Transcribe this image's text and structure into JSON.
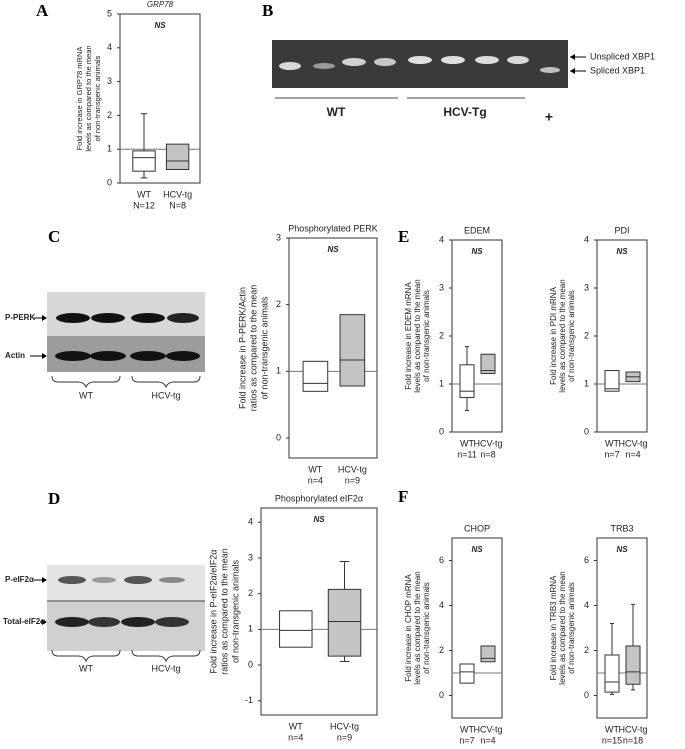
{
  "panel_labels": [
    "A",
    "B",
    "C",
    "D",
    "E",
    "F"
  ],
  "blots": {
    "xbp1": {
      "bands": [
        "Unspliced XBP1",
        "Spliced XBP1"
      ],
      "groups": [
        "WT",
        "HCV-Tg",
        "+"
      ]
    },
    "perk": {
      "rows": [
        "P-PERK",
        "Actin"
      ],
      "groups": [
        "WT",
        "HCV-tg"
      ]
    },
    "eif2a": {
      "rows": [
        "P-eIF2α",
        "Total-eIF2α"
      ],
      "groups": [
        "WT",
        "HCV-tg"
      ]
    }
  },
  "chart_data": [
    {
      "type": "box",
      "title": "GRP78",
      "annotation": "NS",
      "ylabel": [
        "Fold increase in GRP78 mRNA",
        "levels as compared to the mean",
        "of non-transgenic animals"
      ],
      "categories": [
        "WT",
        "HCV-tg"
      ],
      "n_labels": [
        "N=12",
        "N=8"
      ],
      "colors": [
        "#ffffff",
        "#c4c4c4"
      ],
      "ylim": [
        0,
        5
      ],
      "yticks": [
        0,
        1,
        2,
        3,
        4,
        5
      ],
      "ref_line": 1,
      "boxes": [
        {
          "min": 0.15,
          "q1": 0.35,
          "median": 0.75,
          "q3": 0.95,
          "max": 2.05
        },
        {
          "min": null,
          "q1": 0.4,
          "median": 0.65,
          "q3": 1.15,
          "max": null
        }
      ]
    },
    {
      "type": "box",
      "title": "Phosphorylated PERK",
      "annotation": "NS",
      "ylabel": [
        "Fold increase in P-PERK/Actin",
        "ratios as compared to the mean",
        "of non-transgenic animals"
      ],
      "categories": [
        "WT",
        "HCV-tg"
      ],
      "n_labels": [
        "n=4",
        "n=9"
      ],
      "colors": [
        "#ffffff",
        "#c4c4c4"
      ],
      "ylim": [
        -0.3,
        3
      ],
      "yticks": [
        0,
        1,
        2,
        3
      ],
      "ref_line": 1,
      "boxes": [
        {
          "min": null,
          "q1": 0.7,
          "median": 0.82,
          "q3": 1.15,
          "max": null
        },
        {
          "min": null,
          "q1": 0.78,
          "median": 1.17,
          "q3": 1.85,
          "max": null
        }
      ]
    },
    {
      "type": "box",
      "title": "Phosphorylated eIF2α",
      "annotation": "NS",
      "ylabel": [
        "Fold increase in P-eIF2α/eIF2α",
        "ratios as compared to the mean",
        "of non-transgenic animals"
      ],
      "categories": [
        "WT",
        "HCV-tg"
      ],
      "n_labels": [
        "n=4",
        "n=9"
      ],
      "colors": [
        "#ffffff",
        "#c4c4c4"
      ],
      "ylim": [
        -1.4,
        4.4
      ],
      "yticks": [
        -1,
        0,
        1,
        2,
        3,
        4
      ],
      "ref_line": 1,
      "boxes": [
        {
          "min": null,
          "q1": 0.5,
          "median": 0.97,
          "q3": 1.52,
          "max": null
        },
        {
          "min": 0.1,
          "q1": 0.25,
          "median": 1.22,
          "q3": 2.12,
          "max": 2.9
        }
      ]
    },
    {
      "type": "box",
      "title": "EDEM",
      "annotation": "NS",
      "ylabel": [
        "Fold increase in EDEM mRNA",
        "levels as compared to the mean",
        "of non-transgenic animals"
      ],
      "categories": [
        "WT",
        "HCV-tg"
      ],
      "n_labels": [
        "n=11",
        "n=8"
      ],
      "colors": [
        "#ffffff",
        "#c4c4c4"
      ],
      "ylim": [
        0,
        4
      ],
      "yticks": [
        0,
        1,
        2,
        3,
        4
      ],
      "ref_line": 1,
      "boxes": [
        {
          "min": 0.45,
          "q1": 0.72,
          "median": 0.85,
          "q3": 1.4,
          "max": 1.78
        },
        {
          "min": null,
          "q1": 1.22,
          "median": 1.28,
          "q3": 1.62,
          "max": null
        }
      ]
    },
    {
      "type": "box",
      "title": "PDI",
      "annotation": "NS",
      "ylabel": [
        "Fold increase in PDI mRNA",
        "levels as compared to the mean",
        "of non-transgenic animals"
      ],
      "categories": [
        "WT",
        "HCV-tg"
      ],
      "n_labels": [
        "n=7",
        "n=4"
      ],
      "colors": [
        "#ffffff",
        "#c4c4c4"
      ],
      "ylim": [
        0,
        4
      ],
      "yticks": [
        0,
        1,
        2,
        3,
        4
      ],
      "ref_line": 1,
      "boxes": [
        {
          "min": null,
          "q1": 0.85,
          "median": 0.9,
          "q3": 1.28,
          "max": null
        },
        {
          "min": null,
          "q1": 1.05,
          "median": 1.15,
          "q3": 1.25,
          "max": null
        }
      ]
    },
    {
      "type": "box",
      "title": "CHOP",
      "annotation": "NS",
      "ylabel": [
        "Fold increase in CHOP mRNA",
        "levels as compared to the mean",
        "of non-transgenic animals"
      ],
      "categories": [
        "WT",
        "HCV-tg"
      ],
      "n_labels": [
        "n=7",
        "n=4"
      ],
      "colors": [
        "#ffffff",
        "#c4c4c4"
      ],
      "ylim": [
        -1,
        7
      ],
      "yticks": [
        0,
        2,
        4,
        6
      ],
      "ref_line": 1,
      "boxes": [
        {
          "min": null,
          "q1": 0.55,
          "median": 1.05,
          "q3": 1.4,
          "max": null
        },
        {
          "min": null,
          "q1": 1.5,
          "median": 1.65,
          "q3": 2.2,
          "max": null
        }
      ]
    },
    {
      "type": "box",
      "title": "TRB3",
      "annotation": "NS",
      "ylabel": [
        "Fold increase in TRB3 mRNA",
        "levels as compared to the mean",
        "of non-transgenic animals"
      ],
      "categories": [
        "WT",
        "HCV-tg"
      ],
      "n_labels": [
        "n=15",
        "n=18"
      ],
      "colors": [
        "#ffffff",
        "#c4c4c4"
      ],
      "ylim": [
        -1,
        7
      ],
      "yticks": [
        0,
        2,
        4,
        6
      ],
      "ref_line": 1,
      "boxes": [
        {
          "min": 0.05,
          "q1": 0.15,
          "median": 0.6,
          "q3": 1.8,
          "max": 3.2
        },
        {
          "min": 0.25,
          "q1": 0.5,
          "median": 1.05,
          "q3": 2.2,
          "max": 4.05
        }
      ]
    }
  ]
}
